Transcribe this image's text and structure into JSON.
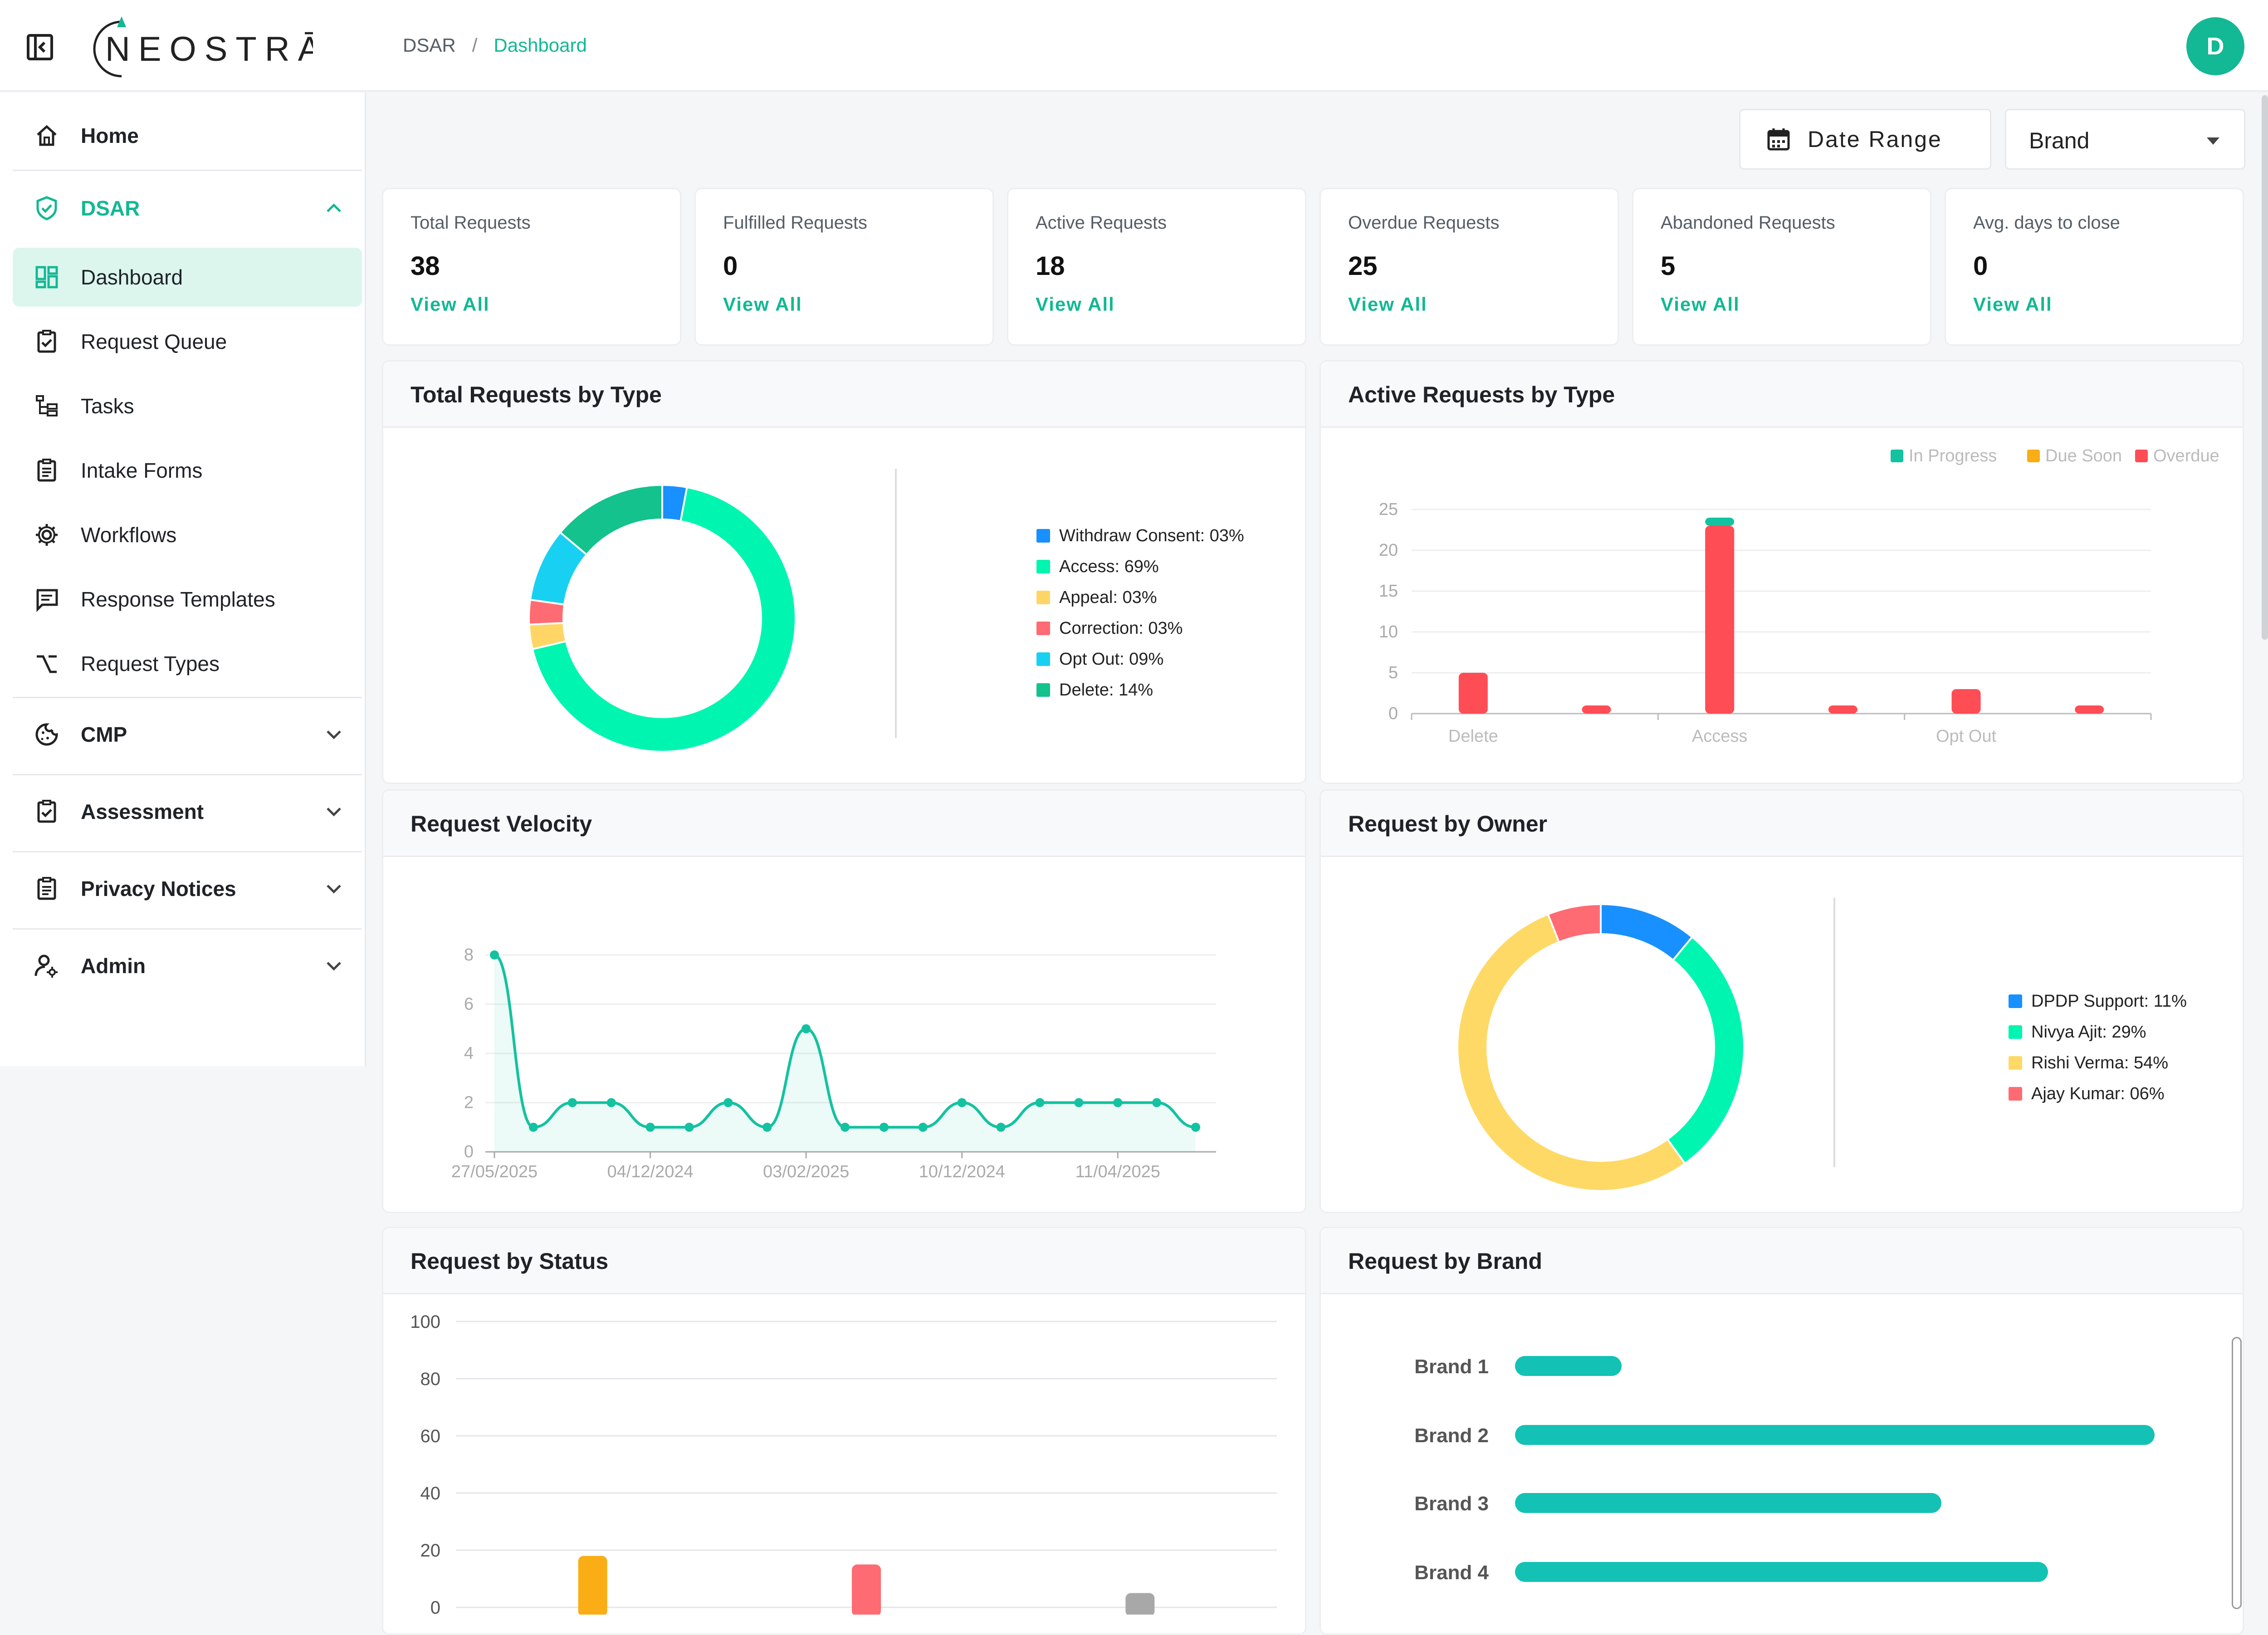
{
  "header": {
    "logo_text": "NEOSTRĀ",
    "breadcrumb": [
      "DSAR",
      "Dashboard"
    ],
    "avatar_initial": "D"
  },
  "sidebar": {
    "home": "Home",
    "dsar": "DSAR",
    "dsar_items": [
      "Dashboard",
      "Request Queue",
      "Tasks",
      "Intake Forms",
      "Workflows",
      "Response Templates",
      "Request Types"
    ],
    "sections": [
      "CMP",
      "Assessment",
      "Privacy Notices",
      "Admin"
    ]
  },
  "filters": {
    "date_range": "Date Range",
    "brand": "Brand"
  },
  "stats": [
    {
      "title": "Total Requests",
      "value": "38",
      "link": "View All"
    },
    {
      "title": "Fulfilled Requests",
      "value": "0",
      "link": "View All"
    },
    {
      "title": "Active Requests",
      "value": "18",
      "link": "View All"
    },
    {
      "title": "Overdue Requests",
      "value": "25",
      "link": "View All"
    },
    {
      "title": "Abandoned Requests",
      "value": "5",
      "link": "View All"
    },
    {
      "title": "Avg. days to close",
      "value": "0",
      "link": "View All"
    }
  ],
  "panels": {
    "total_by_type": "Total Requests by Type",
    "active_by_type": "Active Requests by Type",
    "velocity": "Request Velocity",
    "by_owner": "Request by Owner",
    "by_status": "Request by Status",
    "by_brand": "Request by Brand"
  },
  "chart_data": [
    {
      "type": "pie",
      "title": "Total Requests by Type",
      "labels": [
        "Withdraw Consent: 03%",
        "Access: 69%",
        "Appeal: 03%",
        "Correction: 03%",
        "Opt Out: 09%",
        "Delete: 14%"
      ],
      "values": [
        3,
        69,
        3,
        3,
        9,
        14
      ],
      "colors": [
        "#1890ff",
        "#00f5b0",
        "#ffd666",
        "#ff6b72",
        "#18d1f2",
        "#13c28d"
      ]
    },
    {
      "type": "bar",
      "title": "Active Requests by Type",
      "legend": [
        "In Progress",
        "Due Soon",
        "Overdue"
      ],
      "legend_colors": [
        "#13c2a0",
        "#faad14",
        "#ff4d55"
      ],
      "categories": [
        "Delete",
        "",
        "Access",
        "",
        "Opt Out",
        ""
      ],
      "series": [
        {
          "name": "Overdue",
          "values": [
            5,
            1,
            23,
            1,
            3,
            1
          ]
        },
        {
          "name": "In Progress",
          "values": [
            0,
            0,
            1,
            0,
            0,
            0
          ]
        }
      ],
      "yticks": [
        "0",
        "5",
        "10",
        "15",
        "20",
        "25"
      ],
      "ylim": [
        0,
        25
      ]
    },
    {
      "type": "line",
      "title": "Request Velocity",
      "values": [
        8,
        1,
        2,
        2,
        1,
        1,
        2,
        1,
        5,
        1,
        1,
        1,
        2,
        1,
        2,
        2,
        2,
        2,
        1
      ],
      "xticks": [
        "27/05/2025",
        "04/12/2024",
        "03/02/2025",
        "10/12/2024",
        "11/04/2025"
      ],
      "yticks": [
        "0",
        "2",
        "4",
        "6",
        "8"
      ],
      "ylim": [
        0,
        8
      ]
    },
    {
      "type": "pie",
      "title": "Request by Owner",
      "labels": [
        "DPDP Support: 11%",
        "Nivya Ajit: 29%",
        "Rishi Verma: 54%",
        "Ajay Kumar: 06%"
      ],
      "values": [
        11,
        29,
        54,
        6
      ],
      "colors": [
        "#1890ff",
        "#00f5b0",
        "#ffd966",
        "#ff6b72"
      ]
    },
    {
      "type": "bar",
      "title": "Request by Status",
      "values": [
        18,
        15,
        5
      ],
      "colors": [
        "#faad14",
        "#ff6b72",
        "#a8a8a8"
      ],
      "yticks": [
        "0",
        "20",
        "40",
        "60",
        "80",
        "100"
      ],
      "ylim": [
        0,
        100
      ]
    },
    {
      "type": "bar",
      "title": "Request by Brand",
      "orientation": "horizontal",
      "categories": [
        "Brand 1",
        "Brand 2",
        "Brand 3",
        "Brand 4"
      ],
      "values": [
        5,
        30,
        20,
        25
      ]
    }
  ]
}
